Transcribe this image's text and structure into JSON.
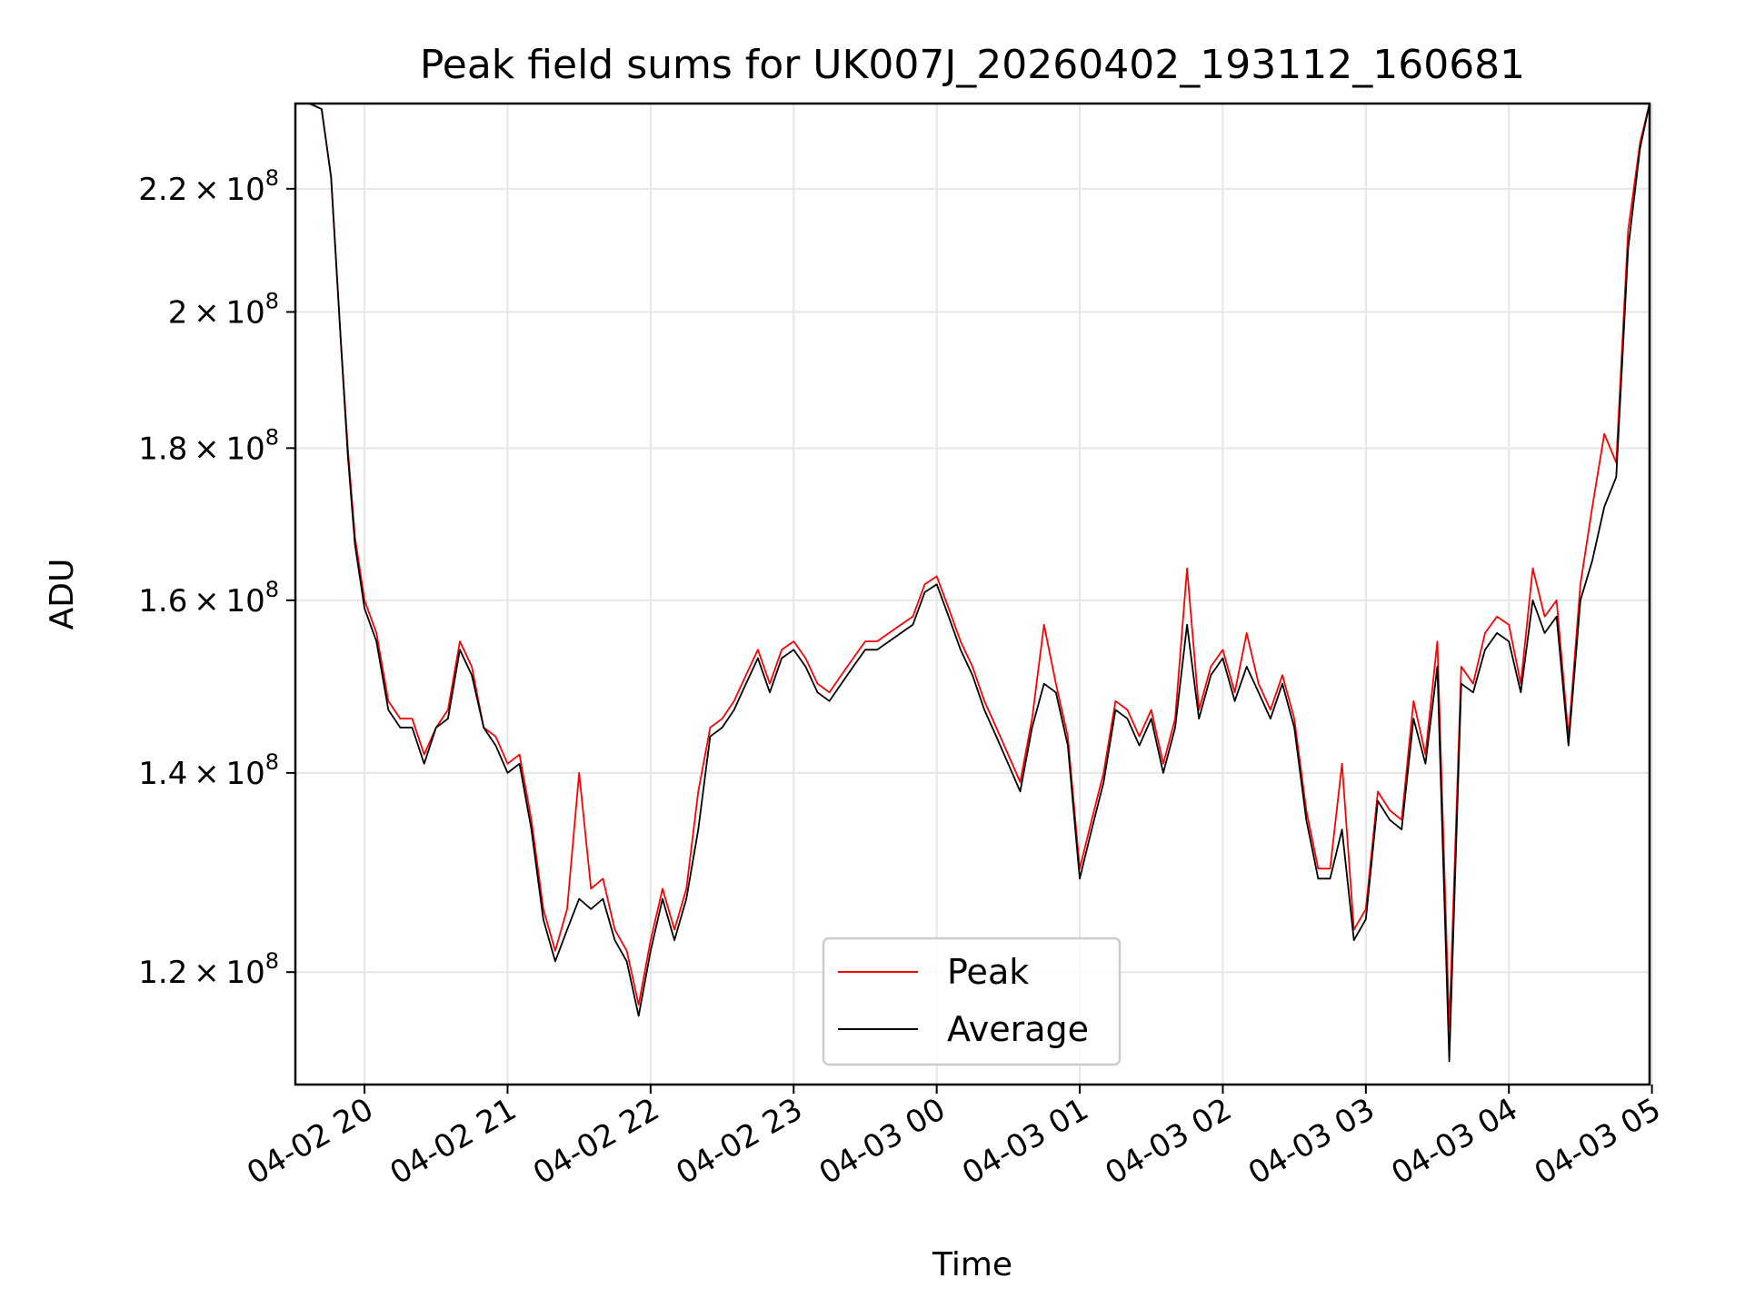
{
  "chart_data": {
    "type": "line",
    "title": "Peak field sums for UK007J_20260402_193112_160681",
    "xlabel": "Time",
    "ylabel": "ADU",
    "yscale": "log",
    "ylim": [
      110000000,
      235000000
    ],
    "xlim": [
      "04-02 19:31",
      "04-03 04:59"
    ],
    "grid": true,
    "legend_position": "lower-center",
    "x_ticks": [
      "04-02 20",
      "04-02 21",
      "04-02 22",
      "04-02 23",
      "04-03 00",
      "04-03 01",
      "04-03 02",
      "04-03 03",
      "04-03 04",
      "04-03 05"
    ],
    "y_ticks": [
      {
        "value": 120000000,
        "mantissa": "1.2",
        "exp": "8"
      },
      {
        "value": 140000000,
        "mantissa": "1.4",
        "exp": "8"
      },
      {
        "value": 160000000,
        "mantissa": "1.6",
        "exp": "8"
      },
      {
        "value": 180000000,
        "mantissa": "1.8",
        "exp": "8"
      },
      {
        "value": 200000000,
        "mantissa": "2",
        "exp": "8"
      },
      {
        "value": 220000000,
        "mantissa": "2.2",
        "exp": "8"
      }
    ],
    "x": [
      "04-02 19:31",
      "04-02 19:37",
      "04-02 19:42",
      "04-02 19:46",
      "04-02 19:50",
      "04-02 19:53",
      "04-02 19:56",
      "04-02 20:00",
      "04-02 20:05",
      "04-02 20:10",
      "04-02 20:15",
      "04-02 20:20",
      "04-02 20:25",
      "04-02 20:30",
      "04-02 20:35",
      "04-02 20:40",
      "04-02 20:45",
      "04-02 20:50",
      "04-02 20:55",
      "04-02 21:00",
      "04-02 21:05",
      "04-02 21:10",
      "04-02 21:15",
      "04-02 21:20",
      "04-02 21:25",
      "04-02 21:30",
      "04-02 21:35",
      "04-02 21:40",
      "04-02 21:45",
      "04-02 21:50",
      "04-02 21:55",
      "04-02 22:00",
      "04-02 22:05",
      "04-02 22:10",
      "04-02 22:15",
      "04-02 22:20",
      "04-02 22:25",
      "04-02 22:30",
      "04-02 22:35",
      "04-02 22:40",
      "04-02 22:45",
      "04-02 22:50",
      "04-02 22:55",
      "04-02 23:00",
      "04-02 23:05",
      "04-02 23:10",
      "04-02 23:15",
      "04-02 23:20",
      "04-02 23:25",
      "04-02 23:30",
      "04-02 23:35",
      "04-02 23:40",
      "04-02 23:45",
      "04-02 23:50",
      "04-02 23:55",
      "04-03 00:00",
      "04-03 00:05",
      "04-03 00:10",
      "04-03 00:15",
      "04-03 00:20",
      "04-03 00:25",
      "04-03 00:30",
      "04-03 00:35",
      "04-03 00:40",
      "04-03 00:45",
      "04-03 00:50",
      "04-03 00:55",
      "04-03 01:00",
      "04-03 01:05",
      "04-03 01:10",
      "04-03 01:15",
      "04-03 01:20",
      "04-03 01:25",
      "04-03 01:30",
      "04-03 01:35",
      "04-03 01:40",
      "04-03 01:45",
      "04-03 01:50",
      "04-03 01:55",
      "04-03 02:00",
      "04-03 02:05",
      "04-03 02:10",
      "04-03 02:15",
      "04-03 02:20",
      "04-03 02:25",
      "04-03 02:30",
      "04-03 02:35",
      "04-03 02:40",
      "04-03 02:45",
      "04-03 02:50",
      "04-03 02:55",
      "04-03 03:00",
      "04-03 03:05",
      "04-03 03:10",
      "04-03 03:15",
      "04-03 03:20",
      "04-03 03:25",
      "04-03 03:30",
      "04-03 03:35",
      "04-03 03:40",
      "04-03 03:45",
      "04-03 03:50",
      "04-03 03:55",
      "04-03 04:00",
      "04-03 04:05",
      "04-03 04:10",
      "04-03 04:15",
      "04-03 04:20",
      "04-03 04:25",
      "04-03 04:30",
      "04-03 04:35",
      "04-03 04:40",
      "04-03 04:45",
      "04-03 04:50",
      "04-03 04:55",
      "04-03 04:59"
    ],
    "series": [
      {
        "name": "Peak",
        "color": "#ff0000",
        "values": [
          235000000,
          235000000,
          234000000,
          222000000,
          196000000,
          180000000,
          168000000,
          160000000,
          156000000,
          148000000,
          146000000,
          146000000,
          142000000,
          145000000,
          147000000,
          155000000,
          152000000,
          145000000,
          144000000,
          141000000,
          142000000,
          135000000,
          126000000,
          122000000,
          126000000,
          140000000,
          128000000,
          129000000,
          124000000,
          122000000,
          117000000,
          123000000,
          128000000,
          124000000,
          128000000,
          138000000,
          145000000,
          146000000,
          148000000,
          151000000,
          154000000,
          150000000,
          154000000,
          155000000,
          153000000,
          150000000,
          149000000,
          151000000,
          153000000,
          155000000,
          155000000,
          156000000,
          157000000,
          158000000,
          162000000,
          163000000,
          159000000,
          155000000,
          152000000,
          148000000,
          145000000,
          142000000,
          139000000,
          146000000,
          157000000,
          150000000,
          144000000,
          130000000,
          135000000,
          140000000,
          148000000,
          147000000,
          144000000,
          147000000,
          141000000,
          146000000,
          164000000,
          147000000,
          152000000,
          154000000,
          149000000,
          156000000,
          150000000,
          147000000,
          151000000,
          146000000,
          136000000,
          130000000,
          130000000,
          141000000,
          124000000,
          126000000,
          138000000,
          136000000,
          135000000,
          148000000,
          142000000,
          155000000,
          115000000,
          152000000,
          150000000,
          156000000,
          158000000,
          157000000,
          150000000,
          164000000,
          158000000,
          160000000,
          144000000,
          162000000,
          172000000,
          182000000,
          178000000,
          213000000,
          228000000,
          235000000
        ]
      },
      {
        "name": "Average",
        "color": "#000000",
        "values": [
          235000000,
          235000000,
          234000000,
          222000000,
          196000000,
          179000000,
          167000000,
          159000000,
          155000000,
          147000000,
          145000000,
          145000000,
          141000000,
          145000000,
          146000000,
          154000000,
          151000000,
          145000000,
          143000000,
          140000000,
          141000000,
          134000000,
          125000000,
          121000000,
          124000000,
          127000000,
          126000000,
          127000000,
          123000000,
          121000000,
          116000000,
          122000000,
          127000000,
          123000000,
          127000000,
          134000000,
          144000000,
          145000000,
          147000000,
          150000000,
          153000000,
          149000000,
          153000000,
          154000000,
          152000000,
          149000000,
          148000000,
          150000000,
          152000000,
          154000000,
          154000000,
          155000000,
          156000000,
          157000000,
          161000000,
          162000000,
          158000000,
          154000000,
          151000000,
          147000000,
          144000000,
          141000000,
          138000000,
          145000000,
          150000000,
          149000000,
          143000000,
          129000000,
          134000000,
          139000000,
          147000000,
          146000000,
          143000000,
          146000000,
          140000000,
          145000000,
          157000000,
          146000000,
          151000000,
          153000000,
          148000000,
          152000000,
          149000000,
          146000000,
          150000000,
          145000000,
          135000000,
          129000000,
          129000000,
          134000000,
          123000000,
          125000000,
          137000000,
          135000000,
          134000000,
          146000000,
          141000000,
          152000000,
          112000000,
          150000000,
          149000000,
          154000000,
          156000000,
          155000000,
          149000000,
          160000000,
          156000000,
          158000000,
          143000000,
          160000000,
          165000000,
          172000000,
          176000000,
          210000000,
          227000000,
          235000000
        ]
      }
    ]
  }
}
